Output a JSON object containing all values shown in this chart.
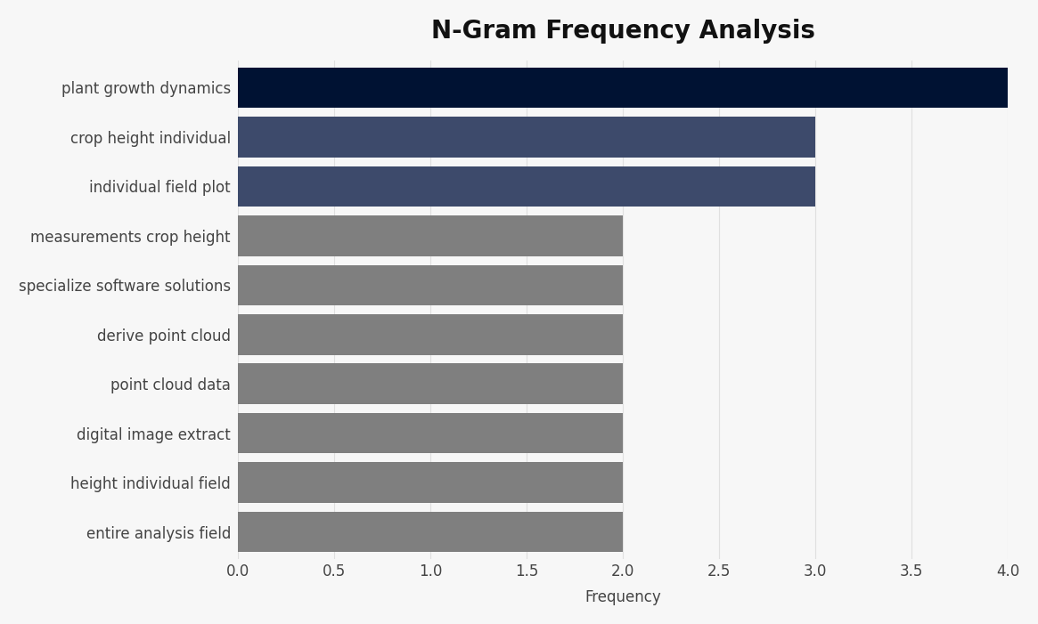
{
  "title": "N-Gram Frequency Analysis",
  "categories": [
    "entire analysis field",
    "height individual field",
    "digital image extract",
    "point cloud data",
    "derive point cloud",
    "specialize software solutions",
    "measurements crop height",
    "individual field plot",
    "crop height individual",
    "plant growth dynamics"
  ],
  "values": [
    2,
    2,
    2,
    2,
    2,
    2,
    2,
    3,
    3,
    4
  ],
  "bar_colors": [
    "#7f7f7f",
    "#7f7f7f",
    "#7f7f7f",
    "#7f7f7f",
    "#7f7f7f",
    "#7f7f7f",
    "#7f7f7f",
    "#3d4a6b",
    "#3d4a6b",
    "#001233"
  ],
  "xlabel": "Frequency",
  "xlim": [
    0,
    4.0
  ],
  "xticks": [
    0.0,
    0.5,
    1.0,
    1.5,
    2.0,
    2.5,
    3.0,
    3.5,
    4.0
  ],
  "background_color": "#f7f7f7",
  "plot_bg_color": "#f7f7f7",
  "title_fontsize": 20,
  "label_fontsize": 12,
  "tick_fontsize": 12,
  "ytick_fontsize": 12,
  "bar_height": 0.82,
  "top3_bar_height": 0.82,
  "grid_color": "#e0e0e0",
  "tick_color": "#444444",
  "label_color": "#444444"
}
